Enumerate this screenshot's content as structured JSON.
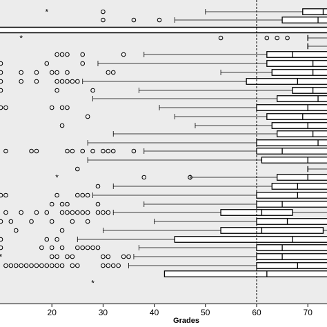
{
  "chart_data": {
    "type": "boxplot",
    "orientation": "horizontal",
    "xlabel": "Grades",
    "xlim": [
      10,
      79
    ],
    "ticks": [
      20,
      30,
      40,
      50,
      60,
      70
    ],
    "reference_line": 60,
    "grid": false,
    "colors": {
      "panel": "#ececec",
      "strip": "#ffffff",
      "ink": "#000000"
    },
    "rows": [
      {
        "whisker_low": 50,
        "q1": 69,
        "median": 73,
        "q3": 79,
        "whisker_high": 79,
        "outliers": [
          30
        ],
        "extremes": [
          19
        ]
      },
      {
        "whisker_low": 44,
        "q1": 65,
        "median": 72,
        "q3": 76,
        "whisker_high": 79,
        "outliers": [
          30,
          36,
          41
        ],
        "extremes": []
      },
      {
        "whisker_low": 70,
        "q1": 70,
        "median": 70,
        "q3": 70,
        "whisker_high": 79,
        "outliers": [
          53,
          62,
          64,
          66
        ],
        "extremes": [
          14
        ]
      },
      {
        "whisker_low": 70,
        "q1": 70,
        "median": 70,
        "q3": 70,
        "whisker_high": 79,
        "outliers": [],
        "extremes": []
      },
      {
        "whisker_low": 38,
        "q1": 62,
        "median": 67,
        "q3": 76,
        "whisker_high": 79,
        "outliers": [
          21,
          22,
          23,
          26,
          34
        ],
        "extremes": []
      },
      {
        "whisker_low": 29,
        "q1": 62,
        "median": 71,
        "q3": 77,
        "whisker_high": 79,
        "outliers": [
          10,
          19,
          26
        ],
        "extremes": []
      },
      {
        "whisker_low": 53,
        "q1": 63,
        "median": 71,
        "q3": 77,
        "whisker_high": 79,
        "outliers": [
          10,
          14,
          17,
          20,
          21,
          23,
          31,
          32
        ],
        "extremes": []
      },
      {
        "whisker_low": 26,
        "q1": 58,
        "median": 68,
        "q3": 75,
        "whisker_high": 79,
        "outliers": [
          10,
          14,
          17,
          21,
          22,
          23,
          24,
          25
        ],
        "extremes": []
      },
      {
        "whisker_low": 37,
        "q1": 67,
        "median": 71,
        "q3": 78,
        "whisker_high": 79,
        "outliers": [
          10,
          21,
          28
        ],
        "extremes": []
      },
      {
        "whisker_low": 28,
        "q1": 64,
        "median": 72,
        "q3": 79,
        "whisker_high": 79,
        "outliers": [],
        "extremes": []
      },
      {
        "whisker_low": 41,
        "q1": 60,
        "median": 70,
        "q3": 77,
        "whisker_high": 79,
        "outliers": [
          10,
          11,
          20,
          22,
          23
        ],
        "extremes": []
      },
      {
        "whisker_low": 44,
        "q1": 62,
        "median": 69,
        "q3": 76,
        "whisker_high": 79,
        "outliers": [
          27
        ],
        "extremes": []
      },
      {
        "whisker_low": 48,
        "q1": 63,
        "median": 70,
        "q3": 78,
        "whisker_high": 79,
        "outliers": [
          22
        ],
        "extremes": []
      },
      {
        "whisker_low": 32,
        "q1": 64,
        "median": 71,
        "q3": 77,
        "whisker_high": 79,
        "outliers": [],
        "extremes": []
      },
      {
        "whisker_low": 27,
        "q1": 60,
        "median": 72,
        "q3": 79,
        "whisker_high": 79,
        "outliers": [],
        "extremes": []
      },
      {
        "whisker_low": 38,
        "q1": 60,
        "median": 65,
        "q3": 75,
        "whisker_high": 79,
        "outliers": [
          11,
          16,
          17,
          23,
          24,
          26,
          28,
          30,
          31,
          32,
          36
        ],
        "extremes": []
      },
      {
        "whisker_low": 27,
        "q1": 61,
        "median": 70,
        "q3": 76,
        "whisker_high": 79,
        "outliers": [],
        "extremes": []
      },
      {
        "whisker_low": 70,
        "q1": 70,
        "median": 70,
        "q3": 70,
        "whisker_high": 79,
        "outliers": [
          25
        ],
        "extremes": []
      },
      {
        "whisker_low": 47,
        "q1": 64,
        "median": 70,
        "q3": 77,
        "whisker_high": 79,
        "outliers": [
          38,
          47
        ],
        "extremes": [
          21
        ]
      },
      {
        "whisker_low": 32,
        "q1": 63,
        "median": 68,
        "q3": 74,
        "whisker_high": 79,
        "outliers": [
          29
        ],
        "extremes": []
      },
      {
        "whisker_low": 28,
        "q1": 60,
        "median": 68,
        "q3": 77,
        "whisker_high": 79,
        "outliers": [
          10,
          11,
          21,
          25,
          26,
          27
        ],
        "extremes": []
      },
      {
        "whisker_low": 38,
        "q1": 60,
        "median": 65,
        "q3": 74,
        "whisker_high": 79,
        "outliers": [
          20,
          22,
          23,
          29
        ],
        "extremes": []
      },
      {
        "whisker_low": 32,
        "q1": 53,
        "median": 61,
        "q3": 67,
        "whisker_high": 79,
        "outliers": [
          11,
          14,
          17,
          19,
          22,
          23,
          24,
          25,
          26,
          27,
          29,
          30,
          31
        ],
        "extremes": []
      },
      {
        "whisker_low": 40,
        "q1": 60,
        "median": 66,
        "q3": 75,
        "whisker_high": 79,
        "outliers": [
          10,
          12,
          16,
          20,
          24,
          27
        ],
        "extremes": []
      },
      {
        "whisker_low": 30,
        "q1": 53,
        "median": 61,
        "q3": 73,
        "whisker_high": 79,
        "outliers": [
          13,
          22
        ],
        "extremes": []
      },
      {
        "whisker_low": 25,
        "q1": 44,
        "median": 67,
        "q3": 77,
        "whisker_high": 79,
        "outliers": [
          10,
          19,
          21
        ],
        "extremes": []
      },
      {
        "whisker_low": 37,
        "q1": 60,
        "median": 65,
        "q3": 74,
        "whisker_high": 79,
        "outliers": [
          10,
          18,
          20,
          22,
          25,
          26,
          27,
          28,
          29
        ],
        "extremes": []
      },
      {
        "whisker_low": 36,
        "q1": 60,
        "median": 65,
        "q3": 75,
        "whisker_high": 79,
        "outliers": [
          20,
          21,
          23,
          24,
          30,
          31,
          34,
          35
        ],
        "extremes": [
          10
        ]
      },
      {
        "whisker_low": 35,
        "q1": 60,
        "median": 68,
        "q3": 76,
        "whisker_high": 79,
        "outliers": [
          11,
          12,
          13,
          14,
          15,
          16,
          17,
          18,
          19,
          20,
          21,
          22,
          24,
          25,
          30,
          31,
          32,
          33
        ],
        "extremes": []
      },
      {
        "whisker_low": 42,
        "q1": 42,
        "median": 62,
        "q3": 79,
        "whisker_high": 79,
        "outliers": [],
        "extremes": []
      },
      {
        "whisker_low": 76,
        "q1": 76,
        "median": 76,
        "q3": 79,
        "whisker_high": 79,
        "outliers": [],
        "extremes": [
          28
        ]
      }
    ]
  }
}
